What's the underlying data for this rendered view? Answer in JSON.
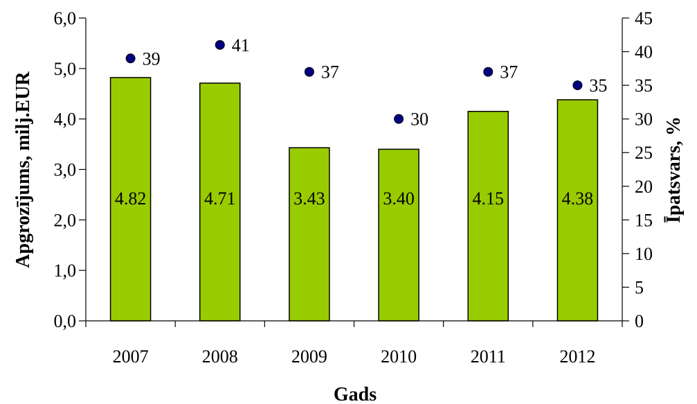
{
  "chart_data": {
    "type": "bar",
    "categories": [
      "2007",
      "2008",
      "2009",
      "2010",
      "2011",
      "2012"
    ],
    "values": [
      4.82,
      4.71,
      3.43,
      3.4,
      4.15,
      4.38
    ],
    "value_labels": [
      "4.82",
      "4.71",
      "3.43",
      "3.40",
      "4.15",
      "4.38"
    ],
    "secondary_values": [
      39,
      41,
      37,
      30,
      37,
      35
    ],
    "secondary_labels": [
      "39",
      "41",
      "37",
      "30",
      "37",
      "35"
    ],
    "xlabel": "Gads",
    "ylabel": "Apgrozījums, milj.EUR",
    "y2label": "Īpatsvars, %",
    "ylim": [
      0,
      6
    ],
    "y2lim": [
      0,
      45
    ],
    "yticks": [
      "0,0",
      "1,0",
      "2,0",
      "3,0",
      "4,0",
      "5,0",
      "6,0"
    ],
    "y2ticks": [
      "0",
      "5",
      "10",
      "15",
      "20",
      "25",
      "30",
      "35",
      "40",
      "45"
    ],
    "colors": {
      "bar_fill": "#99cc00",
      "bar_stroke": "#000000",
      "marker_fill": "#000080",
      "axis": "#000000"
    }
  }
}
